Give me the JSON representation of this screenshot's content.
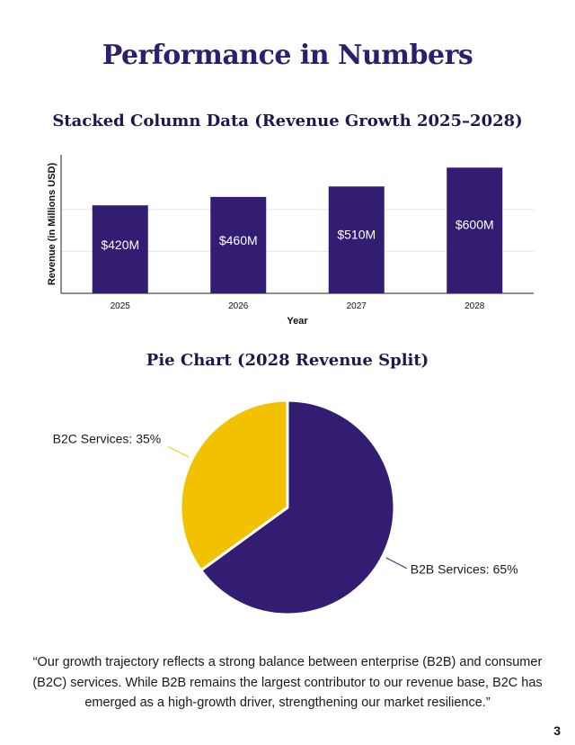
{
  "page": {
    "title": "Performance in Numbers",
    "quote": "“Our growth trajectory reflects a strong balance between enterprise (B2B) and consumer (B2C) services. While B2B remains the largest contributor to our revenue base, B2C has emerged as a high-growth driver, strengthening our market resilience.”",
    "page_number": "3"
  },
  "colors": {
    "primary": "#321d73",
    "accent": "#f2c200",
    "title": "#2e1f6e",
    "grid": "#e6e6e6"
  },
  "chart_data": [
    {
      "type": "bar",
      "title": "Stacked Column Data (Revenue Growth 2025–2028)",
      "xlabel": "Year",
      "ylabel": "Revenue (in Millions USD)",
      "categories": [
        "2025",
        "2026",
        "2027",
        "2028"
      ],
      "values": [
        420,
        460,
        510,
        600
      ],
      "data_labels": [
        "$420M",
        "$460M",
        "$510M",
        "$600M"
      ],
      "ylim": [
        0,
        700
      ],
      "y_tick_labels_shown": false,
      "grid": true
    },
    {
      "type": "pie",
      "title": "Pie Chart (2028 Revenue Split)",
      "slices": [
        {
          "label": "B2B Services: 65%",
          "value": 65,
          "color": "#321d73"
        },
        {
          "label": "B2C Services: 35%",
          "value": 35,
          "color": "#f2c200"
        }
      ]
    }
  ]
}
